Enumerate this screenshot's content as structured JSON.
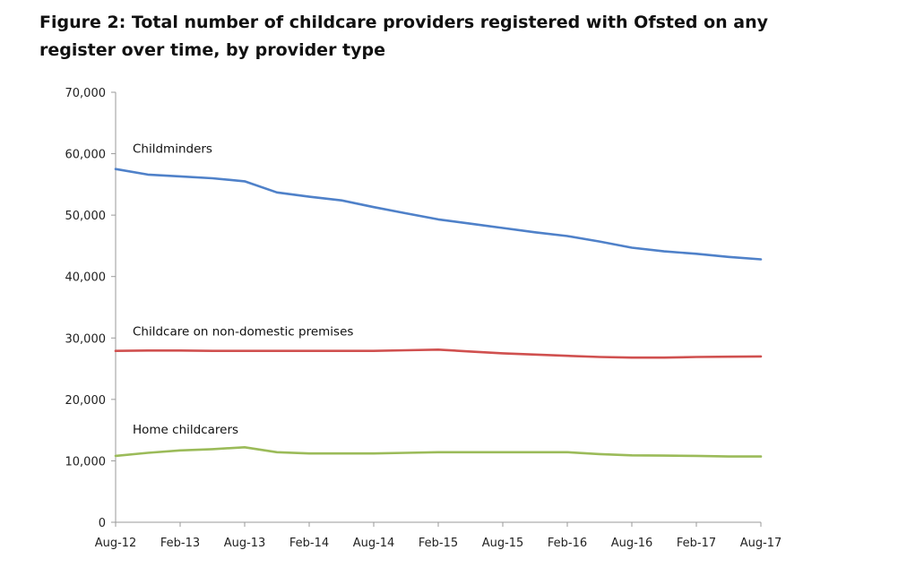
{
  "title": "Figure 2: Total number of childcare providers registered with Ofsted on any register over time, by provider type",
  "chart_data": {
    "type": "line",
    "title": "Figure 2: Total number of childcare providers registered with Ofsted on any register over time, by provider type",
    "xlabel": "",
    "ylabel": "",
    "categories": [
      "Aug-12",
      "Nov-12",
      "Feb-13",
      "May-13",
      "Aug-13",
      "Nov-13",
      "Feb-14",
      "May-14",
      "Aug-14",
      "Nov-14",
      "Feb-15",
      "May-15",
      "Aug-15",
      "Nov-15",
      "Feb-16",
      "May-16",
      "Aug-16",
      "Nov-16",
      "Feb-17",
      "May-17",
      "Aug-17"
    ],
    "tick_labels": [
      "Aug-12",
      "Feb-13",
      "Aug-13",
      "Feb-14",
      "Aug-14",
      "Feb-15",
      "Aug-15",
      "Feb-16",
      "Aug-16",
      "Feb-17",
      "Aug-17"
    ],
    "ylim": [
      0,
      70000
    ],
    "yticks": [
      0,
      10000,
      20000,
      30000,
      40000,
      50000,
      60000,
      70000
    ],
    "ytick_labels": [
      "0",
      "10,000",
      "20,000",
      "30,000",
      "40,000",
      "50,000",
      "60,000",
      "70,000"
    ],
    "grid": false,
    "legend": "inline labels above each line",
    "series": [
      {
        "name": "Childminders",
        "color": "#4F81C9",
        "values": [
          57500,
          56600,
          56300,
          56000,
          55500,
          53700,
          53000,
          52400,
          51300,
          50300,
          49300,
          48600,
          47900,
          47200,
          46600,
          45700,
          44700,
          44100,
          43700,
          43200,
          42800
        ]
      },
      {
        "name": "Childcare on non-domestic premises",
        "color": "#D0504F",
        "values": [
          27900,
          27950,
          27950,
          27900,
          27900,
          27900,
          27900,
          27900,
          27900,
          28000,
          28100,
          27800,
          27500,
          27300,
          27100,
          26900,
          26800,
          26800,
          26900,
          26950,
          27000
        ]
      },
      {
        "name": "Home childcarers",
        "color": "#9BBB59",
        "values": [
          10800,
          11300,
          11700,
          11900,
          12200,
          11400,
          11200,
          11200,
          11200,
          11300,
          11400,
          11400,
          11400,
          11400,
          11400,
          11100,
          10900,
          10850,
          10800,
          10700,
          10700
        ]
      }
    ]
  }
}
